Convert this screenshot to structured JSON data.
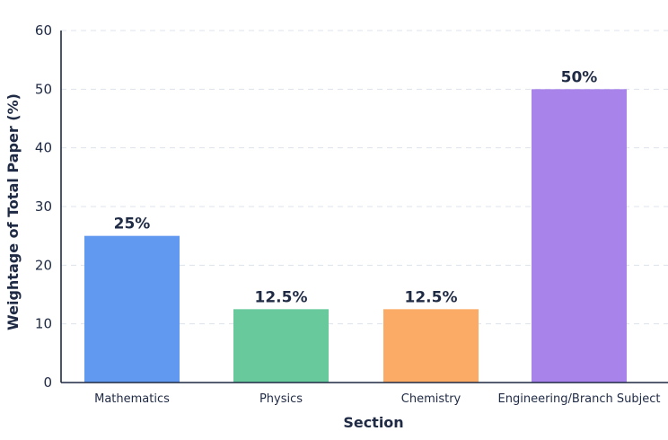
{
  "chart_data": {
    "type": "bar",
    "title": "",
    "xlabel": "Section",
    "ylabel": "Weightage of Total Paper (%)",
    "ylim": [
      0,
      60
    ],
    "yticks": [
      0,
      10,
      20,
      30,
      40,
      50,
      60
    ],
    "grid": true,
    "categories": [
      "Mathematics",
      "Physics",
      "Chemistry",
      "Engineering/Branch Subject"
    ],
    "values": [
      25,
      12.5,
      12.5,
      50
    ],
    "data_labels": [
      "25%",
      "12.5%",
      "12.5%",
      "50%"
    ],
    "colors": [
      "#6199f0",
      "#68c99c",
      "#fbab66",
      "#a883ea"
    ]
  }
}
